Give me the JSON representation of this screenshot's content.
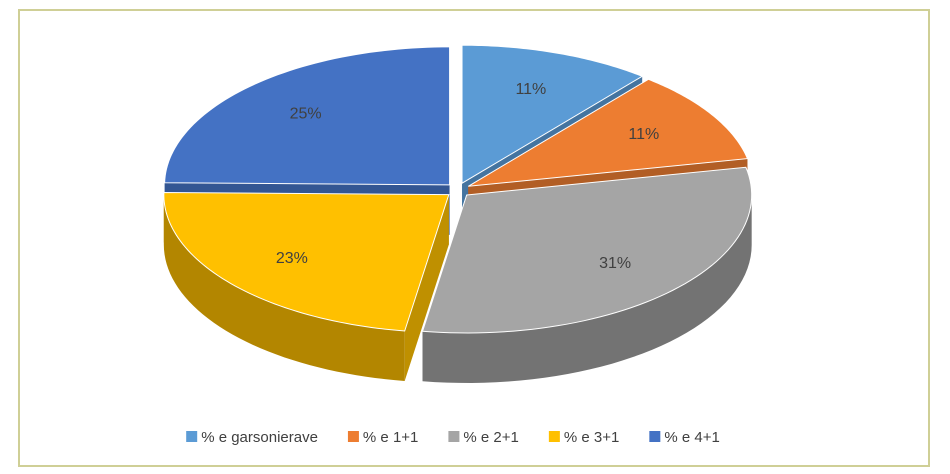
{
  "chart_data": {
    "type": "pie",
    "categories": [
      "% e garsonierave",
      "% e 1+1",
      "% e 2+1",
      "% e 3+1",
      "% e 4+1"
    ],
    "values": [
      11,
      11,
      31,
      23,
      25
    ],
    "value_labels": [
      "11%",
      "11%",
      "31%",
      "23%",
      "25%"
    ],
    "colors": [
      "#5b9bd5",
      "#ed7d31",
      "#a5a5a5",
      "#ffc000",
      "#4472c4"
    ],
    "legend": "bottom"
  }
}
